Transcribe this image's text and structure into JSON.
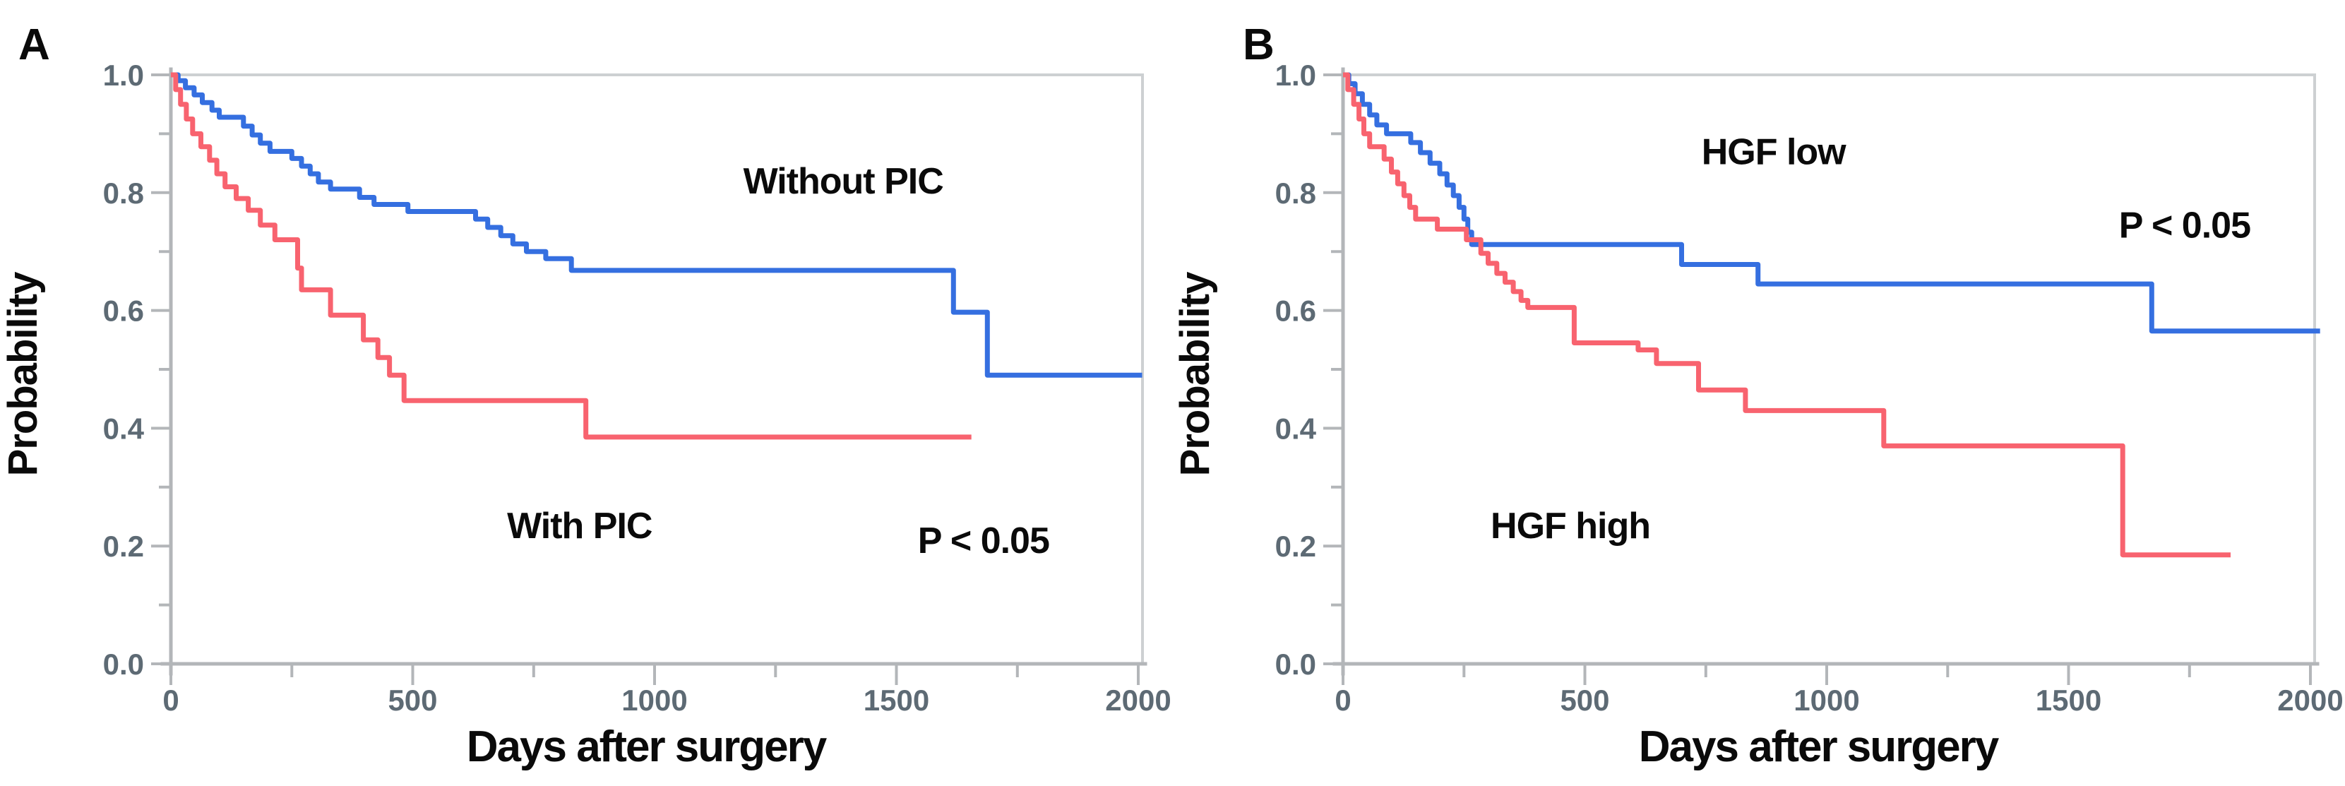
{
  "figure": {
    "background": "#ffffff",
    "ink_color": "#0a0a0a",
    "axis_color": "#b3b6b9",
    "frame_color": "#cdd0d2",
    "tick_label_color": "#5d6a74",
    "xlabel": "Days after surgery",
    "ylabel": "Probability"
  },
  "chart_data": [
    {
      "panel_label": "A",
      "type": "line",
      "subtype": "kaplan_meier_step",
      "title": "",
      "xlabel": "Days after surgery",
      "ylabel": "Probability",
      "xlim": [
        0,
        2010
      ],
      "ylim": [
        0.0,
        1.0
      ],
      "xticks": [
        0,
        500,
        1000,
        1500,
        2000
      ],
      "xticks_minor": [
        250,
        750,
        1250,
        1750
      ],
      "yticks": [
        1.0,
        0.8,
        0.6,
        0.4,
        0.2,
        0.0
      ],
      "ytick_labels": [
        "1.0",
        "0.8",
        "0.6",
        "0.4",
        "0.2",
        "0.0"
      ],
      "yticks_minor": [
        0.9,
        0.7,
        0.5,
        0.3,
        0.1
      ],
      "grid": "top-frame-line-only",
      "legend_position": "none (inline annotations)",
      "pvalue": "P < 0.05",
      "annotations": [
        {
          "text": "Without PIC",
          "x": 1390,
          "y": 0.82,
          "role": "series-label",
          "series": "Without PIC"
        },
        {
          "text": "With PIC",
          "x": 845,
          "y": 0.235,
          "role": "series-label",
          "series": "With PIC"
        },
        {
          "text": "P < 0.05",
          "x": 1680,
          "y": 0.21,
          "role": "pvalue"
        }
      ],
      "series": [
        {
          "name": "Without PIC",
          "color": "#356fe0",
          "steps": [
            [
              0,
              1.0
            ],
            [
              15,
              0.99
            ],
            [
              30,
              0.978
            ],
            [
              48,
              0.966
            ],
            [
              65,
              0.953
            ],
            [
              85,
              0.94
            ],
            [
              100,
              0.928
            ],
            [
              150,
              0.913
            ],
            [
              168,
              0.898
            ],
            [
              185,
              0.884
            ],
            [
              205,
              0.87
            ],
            [
              250,
              0.858
            ],
            [
              270,
              0.845
            ],
            [
              288,
              0.832
            ],
            [
              305,
              0.818
            ],
            [
              330,
              0.806
            ],
            [
              390,
              0.792
            ],
            [
              420,
              0.78
            ],
            [
              490,
              0.768
            ],
            [
              630,
              0.755
            ],
            [
              655,
              0.741
            ],
            [
              682,
              0.727
            ],
            [
              707,
              0.713
            ],
            [
              735,
              0.7
            ],
            [
              775,
              0.688
            ],
            [
              828,
              0.668
            ],
            [
              1618,
              0.597
            ],
            [
              1688,
              0.49
            ],
            [
              2008,
              0.49
            ]
          ]
        },
        {
          "name": "With PIC",
          "color": "#f8636f",
          "steps": [
            [
              0,
              1.0
            ],
            [
              10,
              0.975
            ],
            [
              20,
              0.95
            ],
            [
              32,
              0.925
            ],
            [
              45,
              0.9
            ],
            [
              62,
              0.878
            ],
            [
              80,
              0.855
            ],
            [
              95,
              0.832
            ],
            [
              112,
              0.81
            ],
            [
              135,
              0.79
            ],
            [
              160,
              0.77
            ],
            [
              185,
              0.745
            ],
            [
              215,
              0.72
            ],
            [
              262,
              0.672
            ],
            [
              270,
              0.635
            ],
            [
              330,
              0.592
            ],
            [
              398,
              0.55
            ],
            [
              428,
              0.52
            ],
            [
              452,
              0.49
            ],
            [
              482,
              0.447
            ],
            [
              858,
              0.385
            ],
            [
              1655,
              0.385
            ]
          ]
        }
      ]
    },
    {
      "panel_label": "B",
      "type": "line",
      "subtype": "kaplan_meier_step",
      "title": "",
      "xlabel": "Days after surgery",
      "ylabel": "Probability",
      "xlim": [
        0,
        2025
      ],
      "ylim": [
        0.0,
        1.0
      ],
      "xticks": [
        0,
        500,
        1000,
        1500,
        2000
      ],
      "xticks_minor": [
        250,
        750,
        1250,
        1750
      ],
      "yticks": [
        1.0,
        0.8,
        0.6,
        0.4,
        0.2,
        0.0
      ],
      "ytick_labels": [
        "1.0",
        "0.8",
        "0.6",
        "0.4",
        "0.2",
        "0.0"
      ],
      "yticks_minor": [
        0.9,
        0.7,
        0.5,
        0.3,
        0.1
      ],
      "grid": "top-frame-line-only",
      "legend_position": "none (inline annotations)",
      "pvalue": "P < 0.05",
      "annotations": [
        {
          "text": "HGF low",
          "x": 890,
          "y": 0.87,
          "role": "series-label",
          "series": "HGF low"
        },
        {
          "text": "HGF high",
          "x": 470,
          "y": 0.235,
          "role": "series-label",
          "series": "HGF high"
        },
        {
          "text": "P < 0.05",
          "x": 1740,
          "y": 0.745,
          "role": "pvalue"
        }
      ],
      "series": [
        {
          "name": "HGF low",
          "color": "#356fe0",
          "steps": [
            [
              0,
              1.0
            ],
            [
              12,
              0.985
            ],
            [
              25,
              0.968
            ],
            [
              40,
              0.95
            ],
            [
              55,
              0.932
            ],
            [
              70,
              0.915
            ],
            [
              90,
              0.9
            ],
            [
              140,
              0.885
            ],
            [
              160,
              0.868
            ],
            [
              180,
              0.85
            ],
            [
              200,
              0.832
            ],
            [
              215,
              0.813
            ],
            [
              228,
              0.795
            ],
            [
              240,
              0.775
            ],
            [
              250,
              0.755
            ],
            [
              258,
              0.733
            ],
            [
              266,
              0.712
            ],
            [
              700,
              0.678
            ],
            [
              858,
              0.645
            ],
            [
              1672,
              0.565
            ],
            [
              2020,
              0.565
            ]
          ]
        },
        {
          "name": "HGF high",
          "color": "#f8636f",
          "steps": [
            [
              0,
              1.0
            ],
            [
              10,
              0.975
            ],
            [
              22,
              0.95
            ],
            [
              33,
              0.925
            ],
            [
              43,
              0.9
            ],
            [
              55,
              0.878
            ],
            [
              85,
              0.857
            ],
            [
              100,
              0.835
            ],
            [
              113,
              0.815
            ],
            [
              126,
              0.795
            ],
            [
              138,
              0.775
            ],
            [
              150,
              0.755
            ],
            [
              195,
              0.738
            ],
            [
              255,
              0.72
            ],
            [
              285,
              0.697
            ],
            [
              300,
              0.68
            ],
            [
              318,
              0.663
            ],
            [
              335,
              0.648
            ],
            [
              352,
              0.632
            ],
            [
              368,
              0.617
            ],
            [
              382,
              0.605
            ],
            [
              478,
              0.545
            ],
            [
              610,
              0.533
            ],
            [
              648,
              0.51
            ],
            [
              735,
              0.465
            ],
            [
              832,
              0.43
            ],
            [
              1118,
              0.37
            ],
            [
              1612,
              0.185
            ],
            [
              1835,
              0.185
            ]
          ]
        }
      ]
    }
  ]
}
